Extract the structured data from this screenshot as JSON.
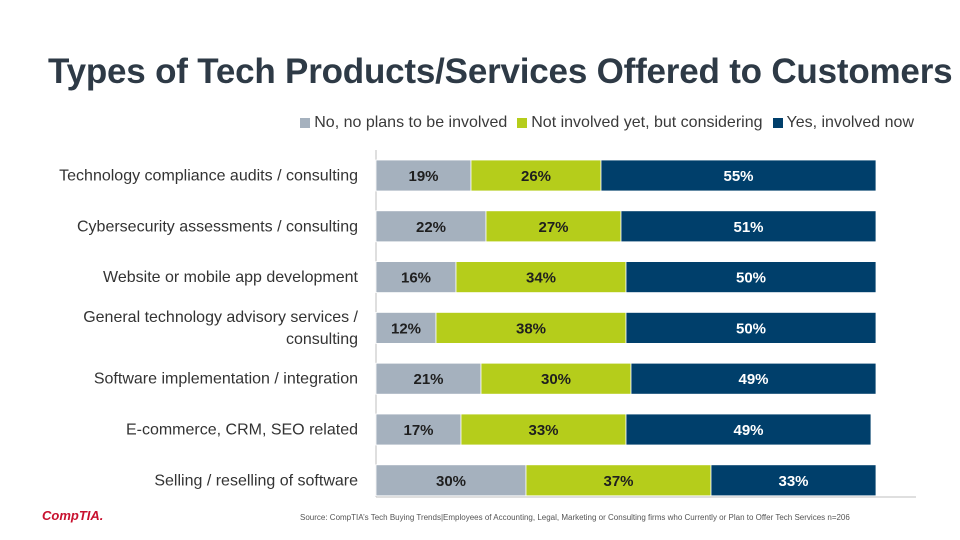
{
  "title": "Types of Tech Products/Services Offered to Customers",
  "colors": {
    "no": "#a5b1be",
    "considering": "#b5cd1b",
    "yes": "#003f6b"
  },
  "legend": [
    {
      "label": "No, no plans to be involved",
      "color": "#a5b1be"
    },
    {
      "label": "Not involved yet, but considering",
      "color": "#b5cd1b"
    },
    {
      "label": "Yes, involved now",
      "color": "#003f6b"
    }
  ],
  "chart_data": {
    "type": "bar",
    "orientation": "horizontal-stacked",
    "title": "Types of Tech Products/Services Offered to Customers",
    "categories": [
      "Technology compliance audits / consulting",
      "Cybersecurity assessments / consulting",
      "Website or mobile app development",
      "General technology advisory services / consulting",
      "Software implementation / integration",
      "E-commerce, CRM, SEO related",
      "Selling / reselling of software"
    ],
    "category_lines": [
      [
        "Technology compliance audits / consulting"
      ],
      [
        "Cybersecurity assessments / consulting"
      ],
      [
        "Website or mobile app development"
      ],
      [
        "General technology advisory services /",
        "consulting"
      ],
      [
        "Software implementation / integration"
      ],
      [
        "E-commerce, CRM, SEO related"
      ],
      [
        "Selling / reselling of software"
      ]
    ],
    "series": [
      {
        "name": "No, no plans to be involved",
        "values": [
          19,
          22,
          16,
          12,
          21,
          17,
          30
        ]
      },
      {
        "name": "Not involved yet, but considering",
        "values": [
          26,
          27,
          34,
          38,
          30,
          33,
          37
        ]
      },
      {
        "name": "Yes, involved now",
        "values": [
          55,
          51,
          50,
          50,
          49,
          49,
          33
        ]
      }
    ],
    "xlim": [
      0,
      100
    ],
    "unit": "%"
  },
  "source": "Source: CompTIA’s Tech Buying Trends|Employees of Accounting, Legal, Marketing or Consulting firms who Currently or Plan to Offer Tech Services n=206",
  "logo": "CompTIA."
}
